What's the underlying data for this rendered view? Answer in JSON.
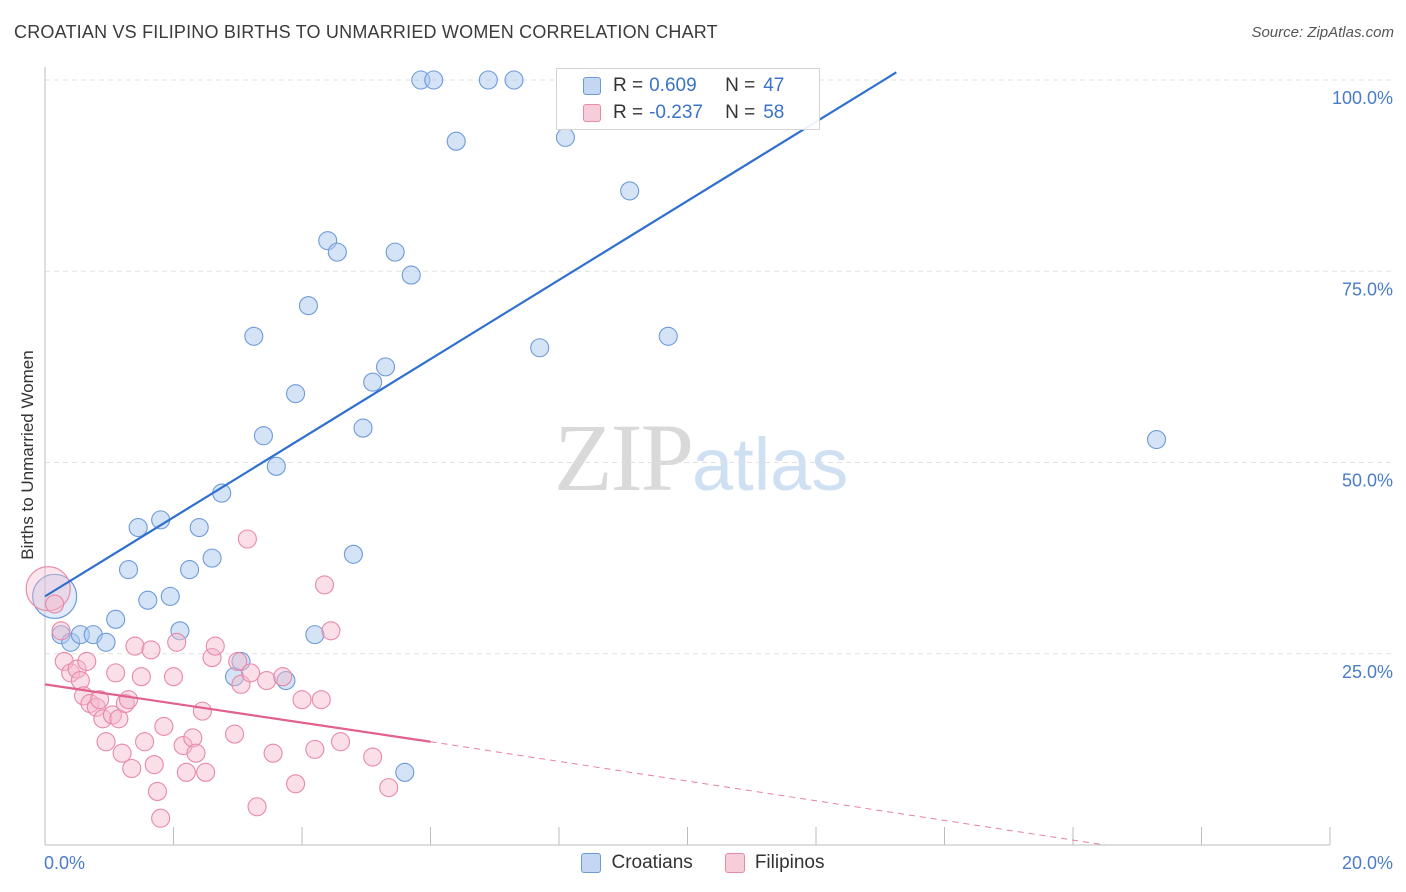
{
  "title": "CROATIAN VS FILIPINO BIRTHS TO UNMARRIED WOMEN CORRELATION CHART",
  "source": "Source: ZipAtlas.com",
  "watermark": {
    "zip": "ZIP",
    "atlas": "atlas"
  },
  "legend": {
    "row1": {
      "r_label": "R =",
      "r_value": "0.609",
      "n_label": "N =",
      "n_value": "47"
    },
    "row2": {
      "r_label": "R =",
      "r_value": "-0.237",
      "n_label": "N =",
      "n_value": "58"
    }
  },
  "colors": {
    "blue_fill": "#a9c7ee",
    "blue_stroke": "#6d9bd8",
    "blue_line": "#2f6fcf",
    "pink_fill": "#f4b8cc",
    "pink_stroke": "#e889a8",
    "pink_line": "#e0608e"
  },
  "chart_data": {
    "type": "scatter",
    "title": "CROATIAN VS FILIPINO BIRTHS TO UNMARRIED WOMEN CORRELATION CHART",
    "xlabel": "",
    "ylabel": "Births to Unmarried Women",
    "xlim": [
      0,
      20
    ],
    "ylim": [
      0,
      100
    ],
    "x_tick_labels": [
      "0.0%",
      "20.0%"
    ],
    "y_ticks": [
      25,
      50,
      75,
      100
    ],
    "y_tick_labels": [
      "25.0%",
      "50.0%",
      "75.0%",
      "100.0%"
    ],
    "legend_position": "bottom-center",
    "series": [
      {
        "name": "Croatians",
        "r": 0.609,
        "n": 47,
        "trend": {
          "x": [
            0,
            13.25
          ],
          "y": [
            32.5,
            101
          ]
        },
        "points": [
          {
            "x": 0.15,
            "y": 32.5,
            "big": true
          },
          {
            "x": 0.25,
            "y": 27.5
          },
          {
            "x": 0.4,
            "y": 26.5
          },
          {
            "x": 0.55,
            "y": 27.5
          },
          {
            "x": 0.75,
            "y": 27.5
          },
          {
            "x": 0.95,
            "y": 26.5
          },
          {
            "x": 1.1,
            "y": 29.5
          },
          {
            "x": 1.3,
            "y": 36.0
          },
          {
            "x": 1.45,
            "y": 41.5
          },
          {
            "x": 1.6,
            "y": 32.0
          },
          {
            "x": 1.8,
            "y": 42.5
          },
          {
            "x": 1.95,
            "y": 32.5
          },
          {
            "x": 2.1,
            "y": 28.0
          },
          {
            "x": 2.25,
            "y": 36.0
          },
          {
            "x": 2.4,
            "y": 41.5
          },
          {
            "x": 2.6,
            "y": 37.5
          },
          {
            "x": 2.75,
            "y": 46.0
          },
          {
            "x": 2.95,
            "y": 22.0
          },
          {
            "x": 3.05,
            "y": 24.0
          },
          {
            "x": 3.25,
            "y": 66.5
          },
          {
            "x": 3.4,
            "y": 53.5
          },
          {
            "x": 3.6,
            "y": 49.5
          },
          {
            "x": 3.75,
            "y": 21.5
          },
          {
            "x": 3.9,
            "y": 59.0
          },
          {
            "x": 4.1,
            "y": 70.5
          },
          {
            "x": 4.2,
            "y": 27.5
          },
          {
            "x": 4.4,
            "y": 79.0
          },
          {
            "x": 4.55,
            "y": 77.5
          },
          {
            "x": 4.8,
            "y": 38.0
          },
          {
            "x": 4.95,
            "y": 54.5
          },
          {
            "x": 5.1,
            "y": 60.5
          },
          {
            "x": 5.3,
            "y": 62.5
          },
          {
            "x": 5.45,
            "y": 77.5
          },
          {
            "x": 5.6,
            "y": 9.5
          },
          {
            "x": 5.7,
            "y": 74.5
          },
          {
            "x": 5.85,
            "y": 100
          },
          {
            "x": 6.05,
            "y": 100
          },
          {
            "x": 6.4,
            "y": 92.0
          },
          {
            "x": 6.9,
            "y": 100
          },
          {
            "x": 7.3,
            "y": 100
          },
          {
            "x": 7.7,
            "y": 65.0
          },
          {
            "x": 8.1,
            "y": 92.5
          },
          {
            "x": 8.5,
            "y": 100
          },
          {
            "x": 9.1,
            "y": 85.5
          },
          {
            "x": 9.7,
            "y": 66.5
          },
          {
            "x": 17.3,
            "y": 53.0
          }
        ]
      },
      {
        "name": "Filipinos",
        "r": -0.237,
        "n": 58,
        "trend": {
          "x": [
            0,
            6.0
          ],
          "y": [
            21.0,
            13.5
          ]
        },
        "trend_extension": {
          "x": [
            6.0,
            16.5
          ],
          "y": [
            13.5,
            0
          ]
        },
        "points": [
          {
            "x": 0.05,
            "y": 33.5,
            "big": true
          },
          {
            "x": 0.15,
            "y": 31.5
          },
          {
            "x": 0.25,
            "y": 28.0
          },
          {
            "x": 0.3,
            "y": 24.0
          },
          {
            "x": 0.4,
            "y": 22.5
          },
          {
            "x": 0.5,
            "y": 23.0
          },
          {
            "x": 0.55,
            "y": 21.5
          },
          {
            "x": 0.6,
            "y": 19.5
          },
          {
            "x": 0.65,
            "y": 24.0
          },
          {
            "x": 0.7,
            "y": 18.5
          },
          {
            "x": 0.8,
            "y": 18.0
          },
          {
            "x": 0.85,
            "y": 19.0
          },
          {
            "x": 0.9,
            "y": 16.5
          },
          {
            "x": 0.95,
            "y": 13.5
          },
          {
            "x": 1.05,
            "y": 17.0
          },
          {
            "x": 1.1,
            "y": 22.5
          },
          {
            "x": 1.15,
            "y": 16.5
          },
          {
            "x": 1.2,
            "y": 12.0
          },
          {
            "x": 1.25,
            "y": 18.5
          },
          {
            "x": 1.3,
            "y": 19.0
          },
          {
            "x": 1.35,
            "y": 10.0
          },
          {
            "x": 1.4,
            "y": 26.0
          },
          {
            "x": 1.5,
            "y": 22.0
          },
          {
            "x": 1.55,
            "y": 13.5
          },
          {
            "x": 1.65,
            "y": 25.5
          },
          {
            "x": 1.7,
            "y": 10.5
          },
          {
            "x": 1.75,
            "y": 7.0
          },
          {
            "x": 1.8,
            "y": 3.5
          },
          {
            "x": 1.85,
            "y": 15.5
          },
          {
            "x": 2.0,
            "y": 22.0
          },
          {
            "x": 2.05,
            "y": 26.5
          },
          {
            "x": 2.15,
            "y": 13.0
          },
          {
            "x": 2.2,
            "y": 9.5
          },
          {
            "x": 2.3,
            "y": 14.0
          },
          {
            "x": 2.35,
            "y": 12.0
          },
          {
            "x": 2.45,
            "y": 17.5
          },
          {
            "x": 2.5,
            "y": 9.5
          },
          {
            "x": 2.6,
            "y": 24.5
          },
          {
            "x": 2.65,
            "y": 26.0
          },
          {
            "x": 2.95,
            "y": 14.5
          },
          {
            "x": 3.0,
            "y": 24.0
          },
          {
            "x": 3.05,
            "y": 21.0
          },
          {
            "x": 3.15,
            "y": 40.0
          },
          {
            "x": 3.2,
            "y": 22.5
          },
          {
            "x": 3.3,
            "y": 5.0
          },
          {
            "x": 3.45,
            "y": 21.5
          },
          {
            "x": 3.55,
            "y": 12.0
          },
          {
            "x": 3.7,
            "y": 22.0
          },
          {
            "x": 3.9,
            "y": 8.0
          },
          {
            "x": 4.0,
            "y": 19.0
          },
          {
            "x": 4.2,
            "y": 12.5
          },
          {
            "x": 4.3,
            "y": 19.0
          },
          {
            "x": 4.35,
            "y": 34.0
          },
          {
            "x": 4.45,
            "y": 28.0
          },
          {
            "x": 4.6,
            "y": 13.5
          },
          {
            "x": 5.1,
            "y": 11.5
          },
          {
            "x": 5.35,
            "y": 7.5
          }
        ]
      }
    ]
  }
}
